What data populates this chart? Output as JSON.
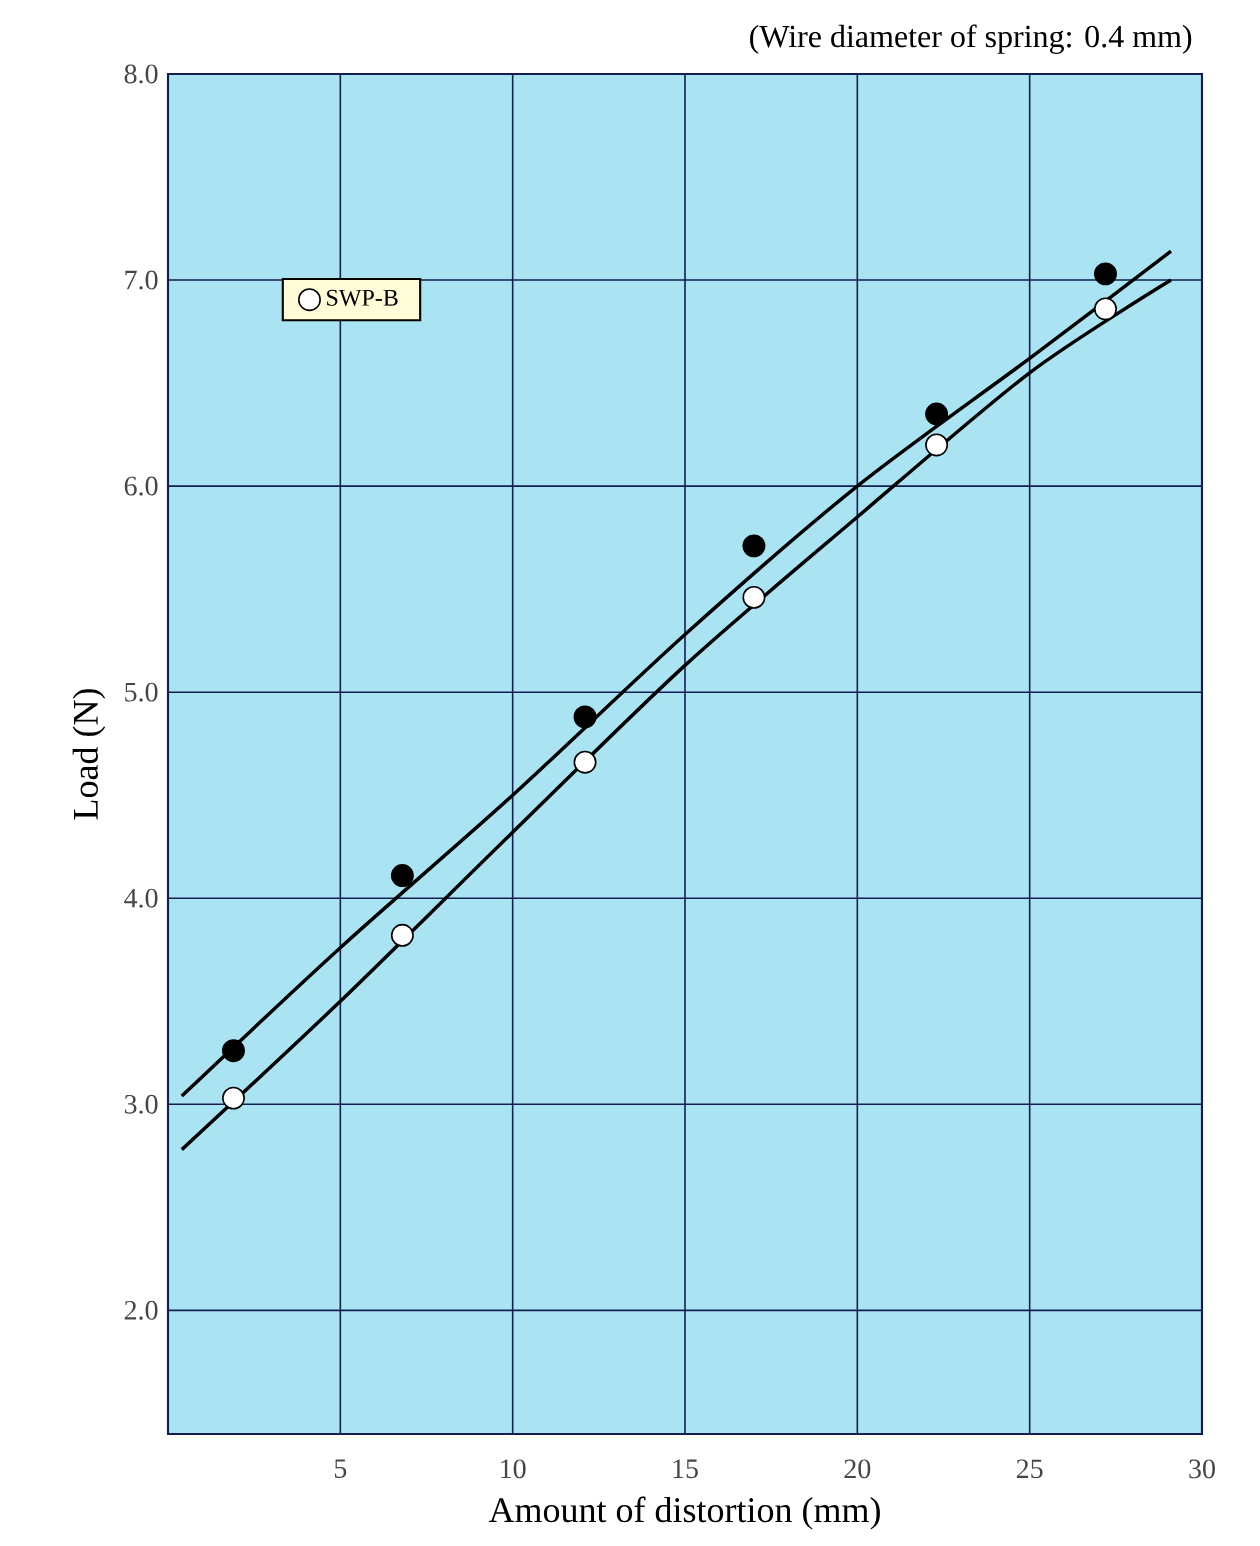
{
  "chart_data": {
    "type": "scatter",
    "title": "(Wire diameter of spring: 0.4 mm)",
    "xlabel": "Amount of distortion (mm)",
    "ylabel": "Load (N)",
    "xlim": [
      0,
      30
    ],
    "xticks": [
      5,
      10,
      15,
      20,
      25,
      30
    ],
    "ylim": [
      1.4,
      8.0
    ],
    "yticks": [
      {
        "value": 2,
        "label": "2.0"
      },
      {
        "value": 3,
        "label": "3.0"
      },
      {
        "value": 4,
        "label": "4.0"
      },
      {
        "value": 5,
        "label": "5.0"
      },
      {
        "value": 6,
        "label": "6.0"
      },
      {
        "value": 7,
        "label": "7.0"
      },
      {
        "value": 8,
        "label": "8.0"
      }
    ],
    "grid": true,
    "legend": "top left",
    "marker": "circle",
    "series": [
      {
        "color": "#000000",
        "x": [
          1.9,
          6.8,
          12.1,
          17.0,
          22.3,
          27.2
        ],
        "values": [
          3.26,
          4.11,
          4.88,
          5.71,
          6.35,
          7.03
        ]
      },
      {
        "name": "SWP-B",
        "color": "#ffffff",
        "x": [
          1.9,
          6.8,
          12.1,
          17.0,
          22.3,
          27.2
        ],
        "values": [
          3.03,
          3.82,
          4.66,
          5.46,
          6.2,
          6.86
        ]
      },
      {
        "type": "line",
        "color": "#000000",
        "marker": "none",
        "x": [
          0.4,
          5,
          10,
          15,
          20,
          25,
          29.1
        ],
        "values": [
          3.04,
          3.76,
          4.5,
          5.28,
          6.0,
          6.62,
          7.14
        ]
      },
      {
        "type": "line",
        "color": "#000000",
        "marker": "none",
        "x": [
          0.4,
          5,
          10,
          15,
          20,
          25,
          29.1
        ],
        "values": [
          2.78,
          3.5,
          4.32,
          5.13,
          5.85,
          6.55,
          7.0
        ]
      }
    ]
  }
}
